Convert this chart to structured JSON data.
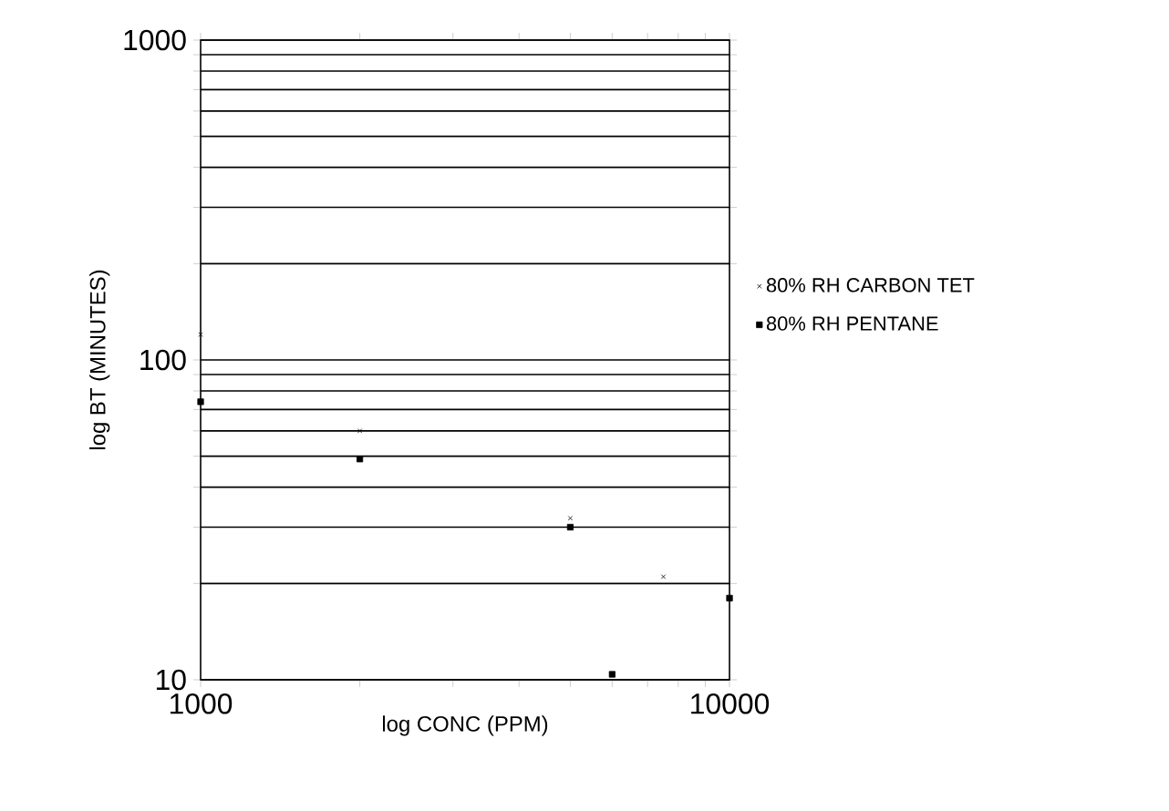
{
  "chart_data": {
    "type": "scatter",
    "xlabel": "log CONC (PPM)",
    "ylabel": "log BT (MINUTES)",
    "log": "xy",
    "grid": "y",
    "legend": "right",
    "xlim": [
      1000,
      10000
    ],
    "ylim": [
      10,
      1000
    ],
    "xticks": [
      1000,
      {
        "value": 2000,
        "label": null
      },
      {
        "value": 3000,
        "label": null
      },
      {
        "value": 4000,
        "label": null
      },
      {
        "value": 5000,
        "label": null
      },
      {
        "value": 6000,
        "label": null
      },
      {
        "value": 7000,
        "label": null
      },
      {
        "value": 8000,
        "label": null
      },
      {
        "value": 9000,
        "label": null
      },
      10000
    ],
    "yticks": [
      10,
      {
        "value": 20,
        "label": null
      },
      {
        "value": 30,
        "label": null
      },
      {
        "value": 40,
        "label": null
      },
      {
        "value": 50,
        "label": null
      },
      {
        "value": 60,
        "label": null
      },
      {
        "value": 70,
        "label": null
      },
      {
        "value": 80,
        "label": null
      },
      {
        "value": 90,
        "label": null
      },
      100,
      {
        "value": 200,
        "label": null
      },
      {
        "value": 300,
        "label": null
      },
      {
        "value": 400,
        "label": null
      },
      {
        "value": 500,
        "label": null
      },
      {
        "value": 600,
        "label": null
      },
      {
        "value": 700,
        "label": null
      },
      {
        "value": 800,
        "label": null
      },
      {
        "value": 900,
        "label": null
      },
      1000
    ],
    "series": [
      {
        "name": "80% RH CARBON TET",
        "color": "#000000",
        "marker": "cross",
        "x": [
          1000,
          2000,
          5000,
          7500
        ],
        "values": [
          120,
          60,
          32,
          21
        ]
      },
      {
        "name": "80% RH PENTANE",
        "color": "#000000",
        "marker": "square",
        "x": [
          1000,
          2000,
          5000,
          6000,
          10000
        ],
        "values": [
          74,
          49,
          30,
          10.4,
          18
        ]
      }
    ]
  }
}
